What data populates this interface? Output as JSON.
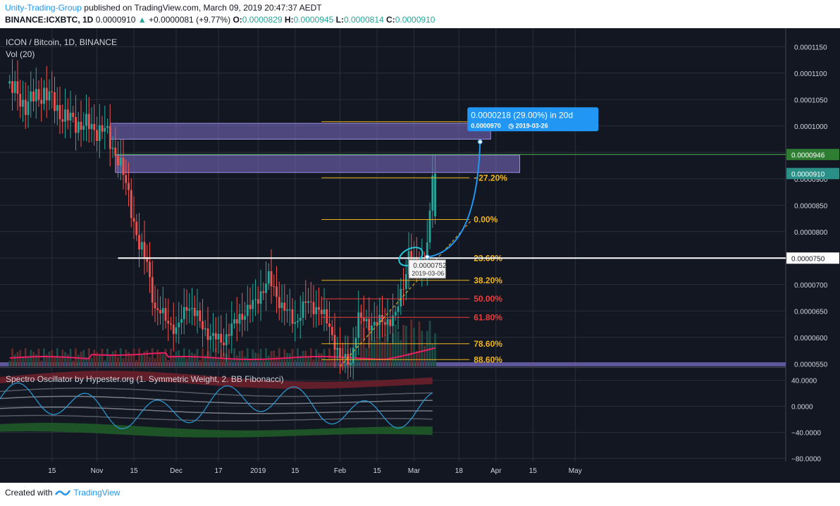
{
  "header": {
    "author": "Unity-Trading-Group",
    "published": "published on TradingView.com, March 09, 2019 20:47:37 AEDT",
    "symbol": "BINANCE:ICXBTC, 1D",
    "last": "0.0000910",
    "change_arrow": "▲",
    "change": "+0.0000081 (+9.77%)",
    "o_label": "O:",
    "o": "0.0000829",
    "h_label": "H:",
    "h": "0.0000945",
    "l_label": "L:",
    "l": "0.0000814",
    "c_label": "C:",
    "c": "0.0000910"
  },
  "footer": {
    "created": "Created with",
    "brand": "TradingView"
  },
  "colors": {
    "up": "#26a69a",
    "down": "#ef5350",
    "bg": "#131722",
    "grid": "#2a2e39",
    "zone": "#7e6fc9",
    "vol_ma": "#e91e63",
    "fib": "#f0b51a",
    "fib_red": "#ef3b3b",
    "label_bg": "#2196f3"
  },
  "chart_data": {
    "type": "candlestick",
    "title": "ICON / Bitcoin, 1D, BINANCE",
    "volume_label": "Vol (20)",
    "oscillator_label": "Spectro Oscillator by Hypester.org (1. Symmetric Weight, 2. BB Fibonacci)",
    "price_range": [
      5.45e-05,
      0.0001185
    ],
    "price_ticks": [
      "0.0001150",
      "0.0001100",
      "0.0001050",
      "0.0001000",
      "0.0000950",
      "0.0000900",
      "0.0000850",
      "0.0000800",
      "0.0000750",
      "0.0000700",
      "0.0000650",
      "0.0000600",
      "0.0000550"
    ],
    "osc_range": [
      -85,
      58
    ],
    "osc_ticks": [
      "40.0000",
      "0.0000",
      "−40.0000",
      "−80.0000"
    ],
    "x_ticks": [
      "15",
      "Nov",
      "15",
      "Dec",
      "17",
      "2019",
      "15",
      "Feb",
      "15",
      "Mar",
      "18",
      "Apr",
      "15",
      "May"
    ],
    "anchors": [
      {
        "date": "2018-09-28",
        "close": 0.000108
      },
      {
        "date": "2018-10-05",
        "close": 0.000104
      },
      {
        "date": "2018-10-12",
        "close": 0.0001065
      },
      {
        "date": "2018-10-20",
        "close": 0.0001015
      },
      {
        "date": "2018-10-28",
        "close": 0.0001
      },
      {
        "date": "2018-11-04",
        "close": 9.9e-05
      },
      {
        "date": "2018-11-09",
        "close": 9.4e-05
      },
      {
        "date": "2018-11-13",
        "close": 8.7e-05
      },
      {
        "date": "2018-11-17",
        "close": 7.7e-05
      },
      {
        "date": "2018-11-20",
        "close": 7.45e-05
      },
      {
        "date": "2018-11-23",
        "close": 6.5e-05
      },
      {
        "date": "2018-11-27",
        "close": 6.4e-05
      },
      {
        "date": "2018-12-01",
        "close": 6.08e-05
      },
      {
        "date": "2018-12-05",
        "close": 6.65e-05
      },
      {
        "date": "2018-12-10",
        "close": 6.3e-05
      },
      {
        "date": "2018-12-14",
        "close": 6e-05
      },
      {
        "date": "2018-12-19",
        "close": 5.95e-05
      },
      {
        "date": "2018-12-25",
        "close": 6.4e-05
      },
      {
        "date": "2018-12-30",
        "close": 6.6e-05
      },
      {
        "date": "2019-01-05",
        "close": 7.1e-05
      },
      {
        "date": "2019-01-10",
        "close": 6.6e-05
      },
      {
        "date": "2019-01-15",
        "close": 6.28e-05
      },
      {
        "date": "2019-01-19",
        "close": 6.65e-05
      },
      {
        "date": "2019-01-24",
        "close": 6.55e-05
      },
      {
        "date": "2019-01-28",
        "close": 6.2e-05
      },
      {
        "date": "2019-02-01",
        "close": 5.6e-05
      },
      {
        "date": "2019-02-05",
        "close": 5.55e-05
      },
      {
        "date": "2019-02-08",
        "close": 6.35e-05
      },
      {
        "date": "2019-02-13",
        "close": 6.25e-05
      },
      {
        "date": "2019-02-18",
        "close": 6.3e-05
      },
      {
        "date": "2019-02-22",
        "close": 6.4e-05
      },
      {
        "date": "2019-02-25",
        "close": 7e-05
      },
      {
        "date": "2019-02-27",
        "close": 7.6e-05
      },
      {
        "date": "2019-03-02",
        "close": 7.3e-05
      },
      {
        "date": "2019-03-05",
        "close": 7.45e-05
      },
      {
        "date": "2019-03-07",
        "close": 8.29e-05
      },
      {
        "date": "2019-03-08",
        "close": 9.1e-05
      }
    ],
    "last_bar": {
      "date": "2019-03-08",
      "open": 8.29e-05,
      "high": 9.45e-05,
      "low": 8.14e-05,
      "close": 9.1e-05
    },
    "resistance_zones": [
      {
        "from": 9.75e-05,
        "to": 0.0001005,
        "start": "2018-11-06",
        "end": "2019-03-30"
      },
      {
        "from": 9.12e-05,
        "to": 9.45e-05,
        "start": "2018-11-08",
        "end": "2019-04-10"
      }
    ],
    "support_zone": {
      "from": 5.45e-05,
      "to": 5.53e-05
    },
    "horizontal_line": {
      "value": 7.5e-05,
      "label": "0.0000750",
      "color": "#ffffff"
    },
    "marker_line": {
      "value": 9.46e-05,
      "label": "0.0000946",
      "color": "#4caf50"
    },
    "fib_levels": [
      {
        "label": "−27.20%",
        "value": 9.02e-05,
        "color": "#f0b51a"
      },
      {
        "label": "0.00%",
        "value": 8.23e-05,
        "color": "#f0b51a"
      },
      {
        "label": "23.60%",
        "value": 7.5e-05,
        "color": "#f0b51a"
      },
      {
        "label": "38.20%",
        "value": 7.08e-05,
        "color": "#f0b51a"
      },
      {
        "label": "50.00%",
        "value": 6.73e-05,
        "color": "#ef3b3b"
      },
      {
        "label": "61.80%",
        "value": 6.38e-05,
        "color": "#ef3b3b"
      },
      {
        "label": "78.60%",
        "value": 5.88e-05,
        "color": "#f0b51a"
      },
      {
        "label": "88.60%",
        "value": 5.58e-05,
        "color": "#f0b51a"
      }
    ],
    "fib_top_line": 0.0001008,
    "projection": {
      "from_date": "2019-03-06",
      "from_value": 7.52e-05,
      "to_date": "2019-03-26",
      "to_value": 9.7e-05,
      "label": "0.0000218 (29.00%) in 20d",
      "sub_value": "0.0000970",
      "sub_date": "2019-03-26"
    },
    "tooltip": {
      "value": "0.0000752",
      "date": "2019-03-06"
    },
    "last_price_label": "0.0000910"
  }
}
